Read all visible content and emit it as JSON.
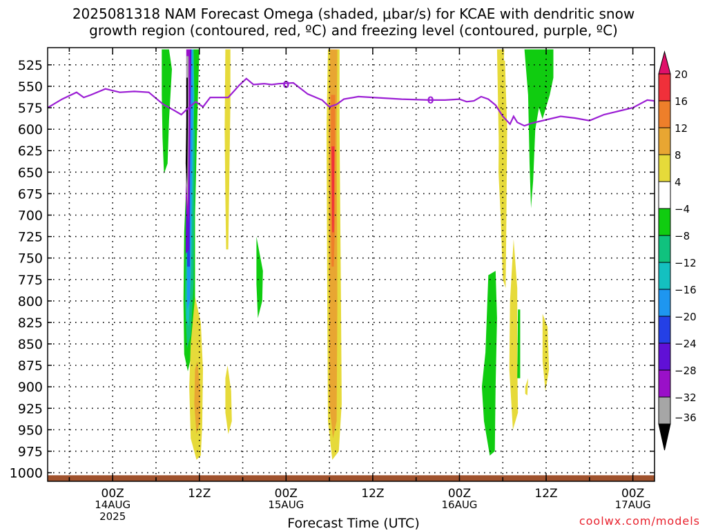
{
  "title": {
    "line1": "2025081318 NAM Forecast Omega (shaded, μbar/s) for KCAE with dendritic snow",
    "line2": "growth region (contoured, red, ºC) and freezing level (contoured, purple, ºC)"
  },
  "credit": "coolwx.com/models",
  "chart_data": {
    "type": "heatmap",
    "title": "2025081318 NAM Forecast Omega (shaded, μbar/s) for KCAE with dendritic snow growth region (contoured, red, ºC) and freezing level (contoured, purple, ºC)",
    "xlabel": "Forecast Time (UTC)",
    "ylabel": "",
    "y_axis": "pressure (hPa), inverted",
    "ylim": [
      1010,
      505
    ],
    "y_ticks": [
      525,
      550,
      575,
      600,
      625,
      650,
      675,
      700,
      725,
      750,
      775,
      800,
      825,
      850,
      875,
      900,
      925,
      950,
      975,
      1000
    ],
    "xlim_hours": [
      -9,
      75
    ],
    "x_ticks": [
      {
        "hour": 0,
        "label": "00Z",
        "sub": "14AUG",
        "year": "2025"
      },
      {
        "hour": 12,
        "label": "12Z"
      },
      {
        "hour": 24,
        "label": "00Z",
        "sub": "15AUG"
      },
      {
        "hour": 36,
        "label": "12Z"
      },
      {
        "hour": 48,
        "label": "00Z",
        "sub": "16AUG"
      },
      {
        "hour": 60,
        "label": "12Z"
      },
      {
        "hour": 72,
        "label": "00Z",
        "sub": "17AUG"
      }
    ],
    "grid": true,
    "colorbar": {
      "labels": [
        "20",
        "16",
        "12",
        "8",
        "4",
        "-4",
        "-8",
        "-12",
        "-16",
        "-20",
        "-24",
        "-28",
        "-32",
        "-36"
      ],
      "bins": [
        {
          "lo": 20,
          "hi": 24,
          "color": "#e0106a"
        },
        {
          "lo": 16,
          "hi": 20,
          "color": "#f0303a"
        },
        {
          "lo": 12,
          "hi": 16,
          "color": "#ee7f2a"
        },
        {
          "lo": 8,
          "hi": 12,
          "color": "#e8a632"
        },
        {
          "lo": 4,
          "hi": 8,
          "color": "#e6da3a"
        },
        {
          "lo": -4,
          "hi": 4,
          "color": "#ffffff"
        },
        {
          "lo": -8,
          "hi": -4,
          "color": "#10cc10"
        },
        {
          "lo": -12,
          "hi": -8,
          "color": "#10c27e"
        },
        {
          "lo": -16,
          "hi": -12,
          "color": "#14c0c0"
        },
        {
          "lo": -20,
          "hi": -16,
          "color": "#1e96f0"
        },
        {
          "lo": -24,
          "hi": -20,
          "color": "#2440e6"
        },
        {
          "lo": -28,
          "hi": -24,
          "color": "#6010d6"
        },
        {
          "lo": -32,
          "hi": -28,
          "color": "#9a10c8"
        },
        {
          "lo": -36,
          "hi": -32,
          "color": "#a6a6a6"
        },
        {
          "lo": -40,
          "hi": -36,
          "color": "#000000"
        }
      ]
    },
    "freezing_level": {
      "color": "#9b1ed4",
      "contour_label": "0",
      "points": [
        [
          -9,
          575
        ],
        [
          -7,
          565
        ],
        [
          -5,
          557
        ],
        [
          -4,
          563
        ],
        [
          -3,
          560
        ],
        [
          -1,
          553
        ],
        [
          1,
          557
        ],
        [
          3,
          556
        ],
        [
          5,
          557
        ],
        [
          7,
          571
        ],
        [
          8.5,
          578
        ],
        [
          9.5,
          583
        ],
        [
          10.5,
          575
        ],
        [
          11.5,
          568
        ],
        [
          12.5,
          574
        ],
        [
          13.5,
          563
        ],
        [
          16,
          563
        ],
        [
          17.5,
          549
        ],
        [
          18.5,
          541
        ],
        [
          19.5,
          548
        ],
        [
          21,
          547
        ],
        [
          22,
          548
        ],
        [
          23,
          547
        ],
        [
          25,
          546
        ],
        [
          27,
          559
        ],
        [
          29,
          566
        ],
        [
          30,
          574
        ],
        [
          31,
          571
        ],
        [
          32,
          565
        ],
        [
          34,
          562
        ],
        [
          36,
          563
        ],
        [
          38,
          564
        ],
        [
          40,
          565
        ],
        [
          44,
          566
        ],
        [
          46,
          566
        ],
        [
          48,
          565
        ],
        [
          49,
          568
        ],
        [
          50,
          567
        ],
        [
          51,
          562
        ],
        [
          52,
          565
        ],
        [
          53,
          572
        ],
        [
          54,
          585
        ],
        [
          55,
          594
        ],
        [
          55.5,
          585
        ],
        [
          56,
          592
        ],
        [
          57,
          596
        ],
        [
          58,
          593
        ],
        [
          60,
          589
        ],
        [
          62,
          585
        ],
        [
          64,
          587
        ],
        [
          66,
          590
        ],
        [
          68,
          583
        ],
        [
          70,
          579
        ],
        [
          72,
          575
        ],
        [
          74,
          566
        ],
        [
          75,
          567
        ],
        [
          75,
          573
        ]
      ]
    },
    "surface_pressure_hPa": 1003,
    "surface_color": "#a0522d",
    "omega_regions": [
      {
        "value": -6,
        "points": [
          [
            6.8,
            507
          ],
          [
            7.8,
            507
          ],
          [
            8.2,
            530
          ],
          [
            7.8,
            590
          ],
          [
            7.6,
            640
          ],
          [
            7.1,
            652
          ],
          [
            6.9,
            610
          ],
          [
            6.8,
            560
          ]
        ]
      },
      {
        "value": -6,
        "points": [
          [
            10.4,
            507
          ],
          [
            12,
            507
          ],
          [
            11.8,
            560
          ],
          [
            11.4,
            700
          ],
          [
            11.4,
            820
          ],
          [
            11,
            860
          ],
          [
            10.4,
            882
          ],
          [
            9.9,
            862
          ],
          [
            9.8,
            800
          ],
          [
            9.9,
            720
          ],
          [
            10.3,
            640
          ]
        ]
      },
      {
        "value": 6,
        "points": [
          [
            11.4,
            795
          ],
          [
            12.2,
            825
          ],
          [
            12.5,
            880
          ],
          [
            12.4,
            945
          ],
          [
            12.2,
            980
          ],
          [
            11.6,
            985
          ],
          [
            10.8,
            960
          ],
          [
            10.6,
            900
          ],
          [
            10.8,
            850
          ]
        ]
      },
      {
        "value": 10,
        "points": [
          [
            11.7,
            870
          ],
          [
            12.1,
            900
          ],
          [
            12.1,
            940
          ],
          [
            11.6,
            955
          ],
          [
            11.3,
            920
          ],
          [
            11.4,
            880
          ]
        ]
      },
      {
        "value": -10,
        "points": [
          [
            10.6,
            600
          ],
          [
            11.4,
            600
          ],
          [
            11.2,
            780
          ],
          [
            10.8,
            840
          ],
          [
            10.3,
            855
          ],
          [
            10,
            800
          ],
          [
            10.2,
            700
          ]
        ]
      },
      {
        "value": -14,
        "points": [
          [
            10.5,
            507
          ],
          [
            11.2,
            507
          ],
          [
            11.3,
            560
          ],
          [
            11,
            700
          ],
          [
            10.9,
            760
          ],
          [
            10.5,
            830
          ],
          [
            10.2,
            820
          ],
          [
            10.3,
            730
          ]
        ]
      },
      {
        "value": -18,
        "points": [
          [
            10.6,
            507
          ],
          [
            11,
            507
          ],
          [
            11.1,
            560
          ],
          [
            10.9,
            700
          ],
          [
            10.7,
            800
          ],
          [
            10.3,
            810
          ],
          [
            10.3,
            730
          ]
        ]
      },
      {
        "value": -22,
        "points": [
          [
            10.3,
            660
          ],
          [
            10.7,
            660
          ],
          [
            10.7,
            760
          ],
          [
            10.3,
            760
          ]
        ]
      },
      {
        "value": -26,
        "points": [
          [
            10.2,
            507
          ],
          [
            10.9,
            507
          ],
          [
            10.8,
            560
          ],
          [
            10.7,
            660
          ],
          [
            10.6,
            740
          ],
          [
            10.1,
            745
          ],
          [
            10.2,
            660
          ]
        ]
      },
      {
        "value": -30,
        "points": [
          [
            10.2,
            507
          ],
          [
            10.7,
            507
          ],
          [
            10.7,
            600
          ],
          [
            10.5,
            710
          ],
          [
            10.1,
            680
          ],
          [
            10.2,
            600
          ]
        ]
      },
      {
        "value": -34,
        "points": [
          [
            10.2,
            515
          ],
          [
            10.5,
            515
          ],
          [
            10.5,
            600
          ],
          [
            10.4,
            690
          ],
          [
            10.1,
            660
          ],
          [
            10.2,
            600
          ]
        ]
      },
      {
        "value": -38,
        "points": [
          [
            10.2,
            540
          ],
          [
            10.4,
            540
          ],
          [
            10.4,
            600
          ],
          [
            10.3,
            665
          ],
          [
            10.1,
            640
          ],
          [
            10.2,
            590
          ]
        ]
      },
      {
        "value": 6,
        "points": [
          [
            15.6,
            507
          ],
          [
            16.3,
            507
          ],
          [
            16.3,
            570
          ],
          [
            16.1,
            680
          ],
          [
            16,
            740
          ],
          [
            15.7,
            740
          ],
          [
            15.6,
            680
          ],
          [
            15.5,
            600
          ]
        ]
      },
      {
        "value": 6,
        "points": [
          [
            15.9,
            875
          ],
          [
            16.4,
            905
          ],
          [
            16.5,
            940
          ],
          [
            16,
            955
          ],
          [
            15.6,
            930
          ],
          [
            15.6,
            890
          ]
        ]
      },
      {
        "value": -6,
        "points": [
          [
            19.9,
            725
          ],
          [
            20.8,
            765
          ],
          [
            20.7,
            800
          ],
          [
            20.1,
            820
          ],
          [
            19.9,
            780
          ]
        ]
      },
      {
        "value": 6,
        "points": [
          [
            29.8,
            507
          ],
          [
            31.4,
            507
          ],
          [
            31.4,
            600
          ],
          [
            31.6,
            800
          ],
          [
            31.7,
            920
          ],
          [
            31.3,
            975
          ],
          [
            30.4,
            985
          ],
          [
            29.8,
            940
          ],
          [
            29.7,
            800
          ],
          [
            29.6,
            600
          ]
        ]
      },
      {
        "value": 10,
        "points": [
          [
            30.1,
            507
          ],
          [
            31.1,
            507
          ],
          [
            31,
            600
          ],
          [
            31.1,
            800
          ],
          [
            31,
            940
          ],
          [
            30.5,
            960
          ],
          [
            30,
            920
          ],
          [
            30,
            800
          ],
          [
            29.9,
            600
          ]
        ]
      },
      {
        "value": 14,
        "points": [
          [
            30.2,
            560
          ],
          [
            30.8,
            560
          ],
          [
            30.8,
            700
          ],
          [
            30.6,
            760
          ],
          [
            30.3,
            760
          ],
          [
            30.2,
            700
          ]
        ]
      },
      {
        "value": 18,
        "points": [
          [
            30.3,
            620
          ],
          [
            30.7,
            620
          ],
          [
            30.6,
            720
          ],
          [
            30.4,
            720
          ]
        ]
      },
      {
        "value": -6,
        "points": [
          [
            57,
            507
          ],
          [
            61,
            507
          ],
          [
            61,
            540
          ],
          [
            60.5,
            560
          ],
          [
            59.5,
            588
          ],
          [
            59,
            575
          ],
          [
            58.5,
            600
          ],
          [
            58.2,
            660
          ],
          [
            57.9,
            692
          ],
          [
            57.7,
            640
          ],
          [
            57.5,
            560
          ]
        ]
      },
      {
        "value": 6,
        "points": [
          [
            53.6,
            520
          ],
          [
            54.3,
            520
          ],
          [
            54.6,
            600
          ],
          [
            54.5,
            700
          ],
          [
            54.4,
            785
          ],
          [
            54,
            775
          ],
          [
            53.7,
            700
          ],
          [
            53.4,
            650
          ],
          [
            53.5,
            560
          ]
        ]
      },
      {
        "value": 6,
        "points": [
          [
            53.2,
            507
          ],
          [
            54.2,
            507
          ],
          [
            54,
            570
          ],
          [
            53.9,
            640
          ],
          [
            53.6,
            670
          ],
          [
            53.4,
            600
          ]
        ]
      },
      {
        "value": 6,
        "points": [
          [
            55.5,
            728
          ],
          [
            56,
            785
          ],
          [
            56,
            870
          ],
          [
            56.1,
            930
          ],
          [
            55.4,
            950
          ],
          [
            54.9,
            880
          ],
          [
            55,
            800
          ]
        ]
      },
      {
        "value": 6,
        "points": [
          [
            57.1,
            900
          ],
          [
            57.5,
            890
          ],
          [
            57.4,
            910
          ],
          [
            57.1,
            908
          ]
        ]
      },
      {
        "value": 6,
        "points": [
          [
            59.5,
            815
          ],
          [
            60.2,
            830
          ],
          [
            60.4,
            880
          ],
          [
            59.9,
            905
          ],
          [
            59.5,
            870
          ]
        ]
      },
      {
        "value": -6,
        "points": [
          [
            52,
            770
          ],
          [
            53,
            765
          ],
          [
            53.2,
            820
          ],
          [
            53,
            900
          ],
          [
            52.9,
            975
          ],
          [
            52.2,
            980
          ],
          [
            51.4,
            940
          ],
          [
            51.1,
            900
          ],
          [
            51.6,
            860
          ]
        ]
      },
      {
        "value": -6,
        "points": [
          [
            56.1,
            810
          ],
          [
            56.4,
            810
          ],
          [
            56.4,
            890
          ],
          [
            56,
            890
          ]
        ]
      }
    ]
  }
}
